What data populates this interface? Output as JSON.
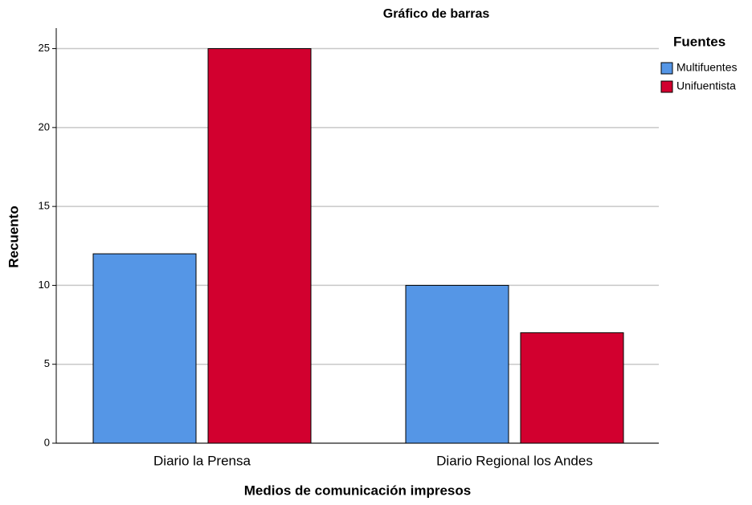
{
  "chart_data": {
    "type": "bar",
    "title": "Gráfico de barras",
    "x_label": "Medios de comunicación impresos",
    "y_label": "Recuento",
    "categories": [
      "Diario la Prensa",
      "Diario Regional los Andes"
    ],
    "series": [
      {
        "name": "Multifuentes",
        "color": "#5596e6",
        "values": [
          12,
          10
        ]
      },
      {
        "name": "Unifuentista",
        "color": "#d2002f",
        "values": [
          25,
          7
        ]
      }
    ],
    "legend_title": "Fuentes",
    "legend": "right",
    "ylim": [
      0,
      26.3
    ],
    "yticks": [
      0,
      5,
      10,
      15,
      20,
      25
    ],
    "grid": true
  }
}
